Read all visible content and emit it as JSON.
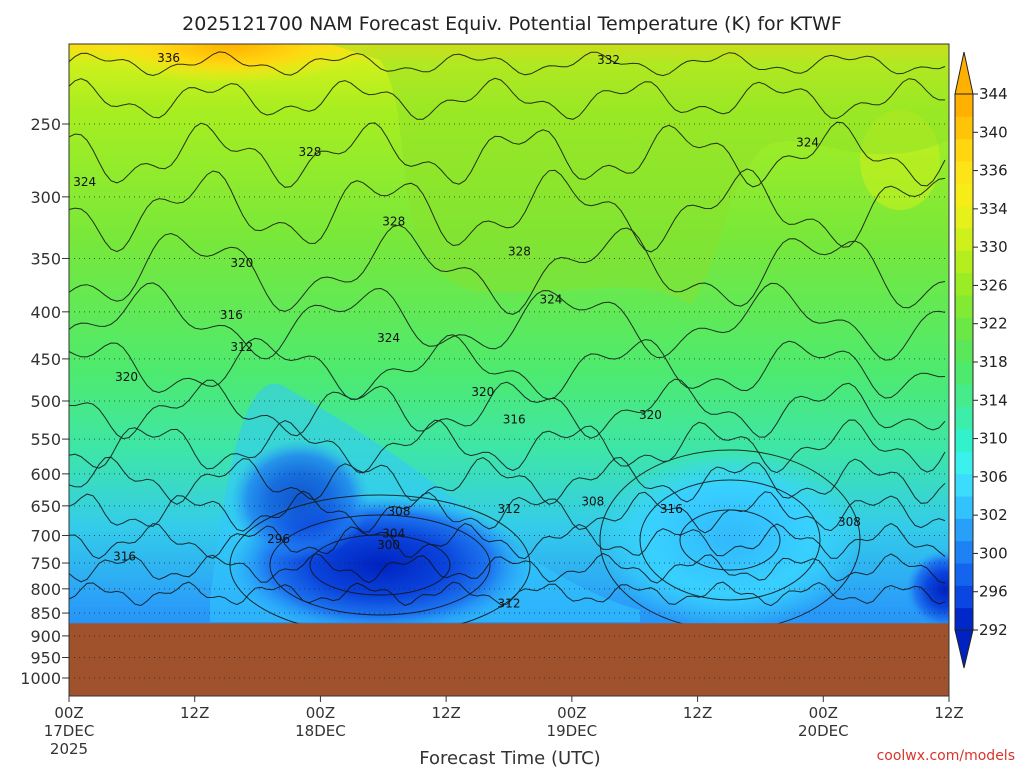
{
  "chart_data": {
    "type": "contour",
    "title": "2025121700 NAM Forecast Equiv. Potential Temperature (K) for KTWF",
    "xlabel": "Forecast Time (UTC)",
    "ylabel": "",
    "y_axis_scale": "log",
    "y_inverted": true,
    "y_ticks": [
      250,
      300,
      350,
      400,
      450,
      500,
      550,
      600,
      650,
      700,
      750,
      800,
      850,
      900,
      950,
      1000
    ],
    "y_tick_labels": [
      "250",
      "300",
      "350",
      "400",
      "450",
      "500",
      "550",
      "600",
      "650",
      "700",
      "750",
      "800",
      "850",
      "900",
      "950",
      "1000"
    ],
    "ylim": [
      1050,
      200
    ],
    "x_range_hours": [
      0,
      84
    ],
    "x_ticks_hours": [
      0,
      12,
      24,
      36,
      48,
      60,
      72,
      84
    ],
    "x_tick_labels": [
      {
        "lines": [
          "00Z",
          "17DEC",
          "2025"
        ]
      },
      {
        "lines": [
          "12Z"
        ]
      },
      {
        "lines": [
          "00Z",
          "18DEC"
        ]
      },
      {
        "lines": [
          "12Z"
        ]
      },
      {
        "lines": [
          "00Z",
          "19DEC"
        ]
      },
      {
        "lines": [
          "12Z"
        ]
      },
      {
        "lines": [
          "00Z",
          "20DEC"
        ]
      },
      {
        "lines": [
          "12Z"
        ]
      }
    ],
    "grid": "dotted horizontal lines at each pressure level",
    "ground_pressure_hpa": 872,
    "ground_color": "#a0522d",
    "colorbar": {
      "levels": [
        292,
        294,
        296,
        298,
        300,
        302,
        304,
        306,
        308,
        310,
        312,
        314,
        316,
        318,
        320,
        322,
        324,
        326,
        328,
        330,
        332,
        334,
        336,
        338,
        340,
        342,
        344
      ],
      "tick_labels": [
        "292",
        "296",
        "300",
        "302",
        "306",
        "310",
        "314",
        "318",
        "322",
        "326",
        "330",
        "334",
        "336",
        "340",
        "344"
      ],
      "colors": [
        "#0028c8",
        "#0a46e0",
        "#1464ee",
        "#1e82f5",
        "#28a0fa",
        "#32c3ff",
        "#3cdcff",
        "#3cf0ee",
        "#32f2cc",
        "#3ceeaa",
        "#46ec8c",
        "#4eea6e",
        "#5ae85a",
        "#6ce846",
        "#82ea32",
        "#9aec24",
        "#b4ee1e",
        "#cef01c",
        "#e6f01a",
        "#f8ec18",
        "#fde418",
        "#ffd610",
        "#ffc408",
        "#ffb000"
      ]
    },
    "contour_labels": [
      {
        "text": "336",
        "hour": 9.5,
        "p": 212
      },
      {
        "text": "332",
        "hour": 51.5,
        "p": 213
      },
      {
        "text": "328",
        "hour": 23,
        "p": 268
      },
      {
        "text": "324",
        "hour": 1.5,
        "p": 289
      },
      {
        "text": "324",
        "hour": 70.5,
        "p": 262
      },
      {
        "text": "328",
        "hour": 31,
        "p": 319
      },
      {
        "text": "328",
        "hour": 43,
        "p": 344
      },
      {
        "text": "320",
        "hour": 16.5,
        "p": 354
      },
      {
        "text": "324",
        "hour": 46,
        "p": 388
      },
      {
        "text": "316",
        "hour": 15.5,
        "p": 403
      },
      {
        "text": "324",
        "hour": 30.5,
        "p": 427
      },
      {
        "text": "312",
        "hour": 16.5,
        "p": 437
      },
      {
        "text": "320",
        "hour": 5.5,
        "p": 471
      },
      {
        "text": "320",
        "hour": 39.5,
        "p": 489
      },
      {
        "text": "316",
        "hour": 42.5,
        "p": 524
      },
      {
        "text": "320",
        "hour": 55.5,
        "p": 518
      },
      {
        "text": "308",
        "hour": 31.5,
        "p": 659
      },
      {
        "text": "312",
        "hour": 42,
        "p": 655
      },
      {
        "text": "308",
        "hour": 50,
        "p": 643
      },
      {
        "text": "316",
        "hour": 57.5,
        "p": 655
      },
      {
        "text": "308",
        "hour": 74.5,
        "p": 677
      },
      {
        "text": "304",
        "hour": 31,
        "p": 697
      },
      {
        "text": "296",
        "hour": 20,
        "p": 706
      },
      {
        "text": "300",
        "hour": 30.5,
        "p": 717
      },
      {
        "text": "316",
        "hour": 5.3,
        "p": 738
      },
      {
        "text": "312",
        "hour": 42,
        "p": 830
      }
    ],
    "credit": "coolwx.com/models"
  }
}
